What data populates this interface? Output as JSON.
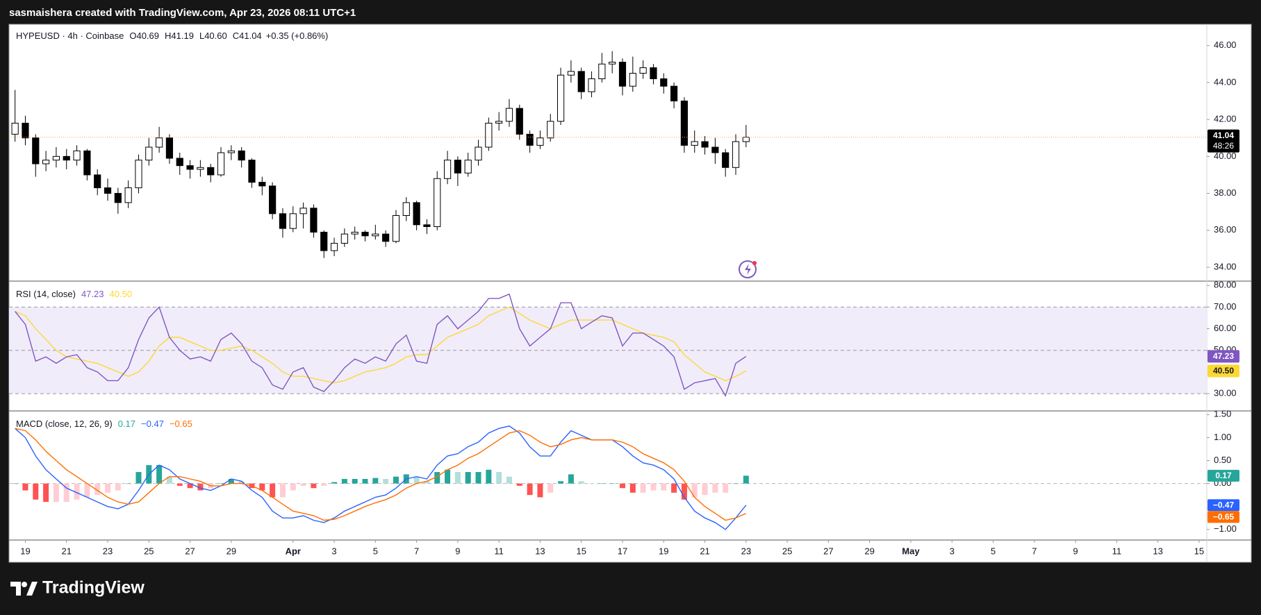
{
  "header": {
    "credit": "sasmaishera created with TradingView.com, Apr 23, 2026 08:11 UTC+1"
  },
  "footer": {
    "brand": "TradingView"
  },
  "chart_data": [
    {
      "type": "candlestick",
      "legend": {
        "symbol": "HYPEUSD · 4h · Coinbase",
        "ohlc": [
          {
            "key": "O",
            "value": "40.69"
          },
          {
            "key": "H",
            "value": "41.19"
          },
          {
            "key": "L",
            "value": "40.60"
          },
          {
            "key": "C",
            "value": "41.04"
          }
        ],
        "change": "+0.35 (+0.86%)"
      },
      "x": [
        "Mar 18 12:00",
        "Mar 19 00:00",
        "Mar 19 12:00",
        "Mar 20 00:00",
        "Mar 20 12:00",
        "Mar 21 00:00",
        "Mar 21 12:00",
        "Mar 22 00:00",
        "Mar 22 12:00",
        "Mar 23 00:00",
        "Mar 23 12:00",
        "Mar 24 00:00",
        "Mar 24 12:00",
        "Mar 25 00:00",
        "Mar 25 12:00",
        "Mar 26 00:00",
        "Mar 26 12:00",
        "Mar 27 00:00",
        "Mar 27 12:00",
        "Mar 28 00:00",
        "Mar 28 12:00",
        "Mar 29 00:00",
        "Mar 29 12:00",
        "Mar 30 00:00",
        "Mar 30 12:00",
        "Mar 31 00:00",
        "Mar 31 12:00",
        "Apr 1 00:00",
        "Apr 1 12:00",
        "Apr 2 00:00",
        "Apr 2 12:00",
        "Apr 3 00:00",
        "Apr 3 12:00",
        "Apr 4 00:00",
        "Apr 4 12:00",
        "Apr 5 00:00",
        "Apr 5 12:00",
        "Apr 6 00:00",
        "Apr 6 12:00",
        "Apr 7 00:00",
        "Apr 7 12:00",
        "Apr 8 00:00",
        "Apr 8 12:00",
        "Apr 9 00:00",
        "Apr 9 12:00",
        "Apr 10 00:00",
        "Apr 10 12:00",
        "Apr 11 00:00",
        "Apr 11 12:00",
        "Apr 12 00:00",
        "Apr 12 12:00",
        "Apr 13 00:00",
        "Apr 13 12:00",
        "Apr 14 00:00",
        "Apr 14 12:00",
        "Apr 15 00:00",
        "Apr 15 12:00",
        "Apr 16 00:00",
        "Apr 16 12:00",
        "Apr 17 00:00",
        "Apr 17 12:00",
        "Apr 18 00:00",
        "Apr 18 12:00",
        "Apr 19 00:00",
        "Apr 19 12:00",
        "Apr 20 00:00",
        "Apr 20 12:00",
        "Apr 21 00:00",
        "Apr 21 12:00",
        "Apr 22 00:00",
        "Apr 22 12:00",
        "Apr 23 00:00"
      ],
      "open": [
        41.2,
        41.8,
        41.0,
        39.6,
        39.8,
        40.0,
        39.8,
        40.3,
        39.0,
        38.3,
        38.0,
        37.5,
        38.3,
        39.8,
        40.5,
        41.0,
        39.9,
        39.5,
        39.3,
        39.4,
        39.0,
        40.2,
        40.3,
        39.8,
        38.6,
        38.4,
        36.9,
        36.1,
        36.9,
        37.2,
        35.9,
        34.9,
        35.3,
        35.8,
        35.9,
        35.7,
        35.8,
        35.4,
        36.8,
        37.5,
        36.3,
        36.2,
        38.8,
        39.8,
        39.1,
        39.8,
        40.5,
        41.8,
        41.9,
        42.6,
        41.2,
        40.6,
        41.0,
        41.9,
        44.4,
        44.6,
        43.5,
        44.2,
        45.0,
        45.1,
        43.8,
        44.5,
        44.8,
        44.2,
        43.8,
        43.0,
        40.6,
        40.8,
        40.5,
        40.2,
        39.4,
        40.8
      ],
      "high": [
        43.6,
        42.2,
        41.2,
        40.3,
        40.5,
        40.4,
        40.6,
        40.4,
        39.3,
        38.8,
        38.3,
        38.7,
        40.1,
        41.0,
        41.6,
        41.2,
        40.2,
        39.8,
        39.8,
        39.6,
        40.5,
        40.6,
        40.5,
        39.9,
        38.9,
        38.6,
        37.2,
        37.3,
        37.5,
        37.4,
        36.0,
        35.6,
        36.1,
        36.2,
        36.0,
        36.3,
        36.0,
        37.1,
        37.8,
        37.6,
        36.6,
        39.2,
        40.3,
        40.0,
        40.2,
        40.9,
        42.1,
        42.4,
        43.1,
        42.8,
        41.4,
        41.4,
        42.3,
        44.8,
        45.2,
        44.8,
        44.6,
        45.6,
        45.7,
        45.3,
        45.4,
        45.2,
        45.0,
        44.5,
        44.0,
        43.2,
        41.4,
        41.1,
        41.0,
        40.4,
        41.2,
        41.7
      ],
      "low": [
        40.8,
        40.6,
        38.9,
        39.2,
        39.4,
        39.3,
        39.5,
        38.7,
        37.9,
        37.6,
        36.9,
        37.2,
        38.0,
        39.5,
        40.2,
        39.6,
        39.0,
        38.8,
        38.9,
        38.6,
        38.9,
        39.8,
        39.4,
        38.3,
        37.9,
        36.6,
        35.6,
        35.9,
        36.1,
        35.6,
        34.5,
        34.6,
        35.1,
        35.5,
        35.4,
        35.5,
        35.1,
        35.3,
        36.5,
        36.0,
        35.8,
        36.0,
        38.5,
        38.4,
        38.9,
        39.5,
        40.3,
        41.4,
        41.6,
        40.9,
        40.2,
        40.4,
        40.8,
        41.7,
        44.0,
        43.1,
        43.2,
        44.0,
        44.5,
        43.3,
        43.5,
        44.2,
        43.9,
        43.4,
        42.6,
        40.2,
        40.2,
        40.1,
        39.6,
        38.9,
        39.0,
        40.5
      ],
      "close": [
        41.8,
        41.0,
        39.6,
        39.8,
        40.0,
        39.8,
        40.3,
        39.0,
        38.3,
        38.0,
        37.5,
        38.3,
        39.8,
        40.5,
        41.0,
        39.9,
        39.5,
        39.3,
        39.4,
        39.0,
        40.2,
        40.3,
        39.8,
        38.6,
        38.4,
        36.9,
        36.1,
        36.9,
        37.2,
        35.9,
        34.9,
        35.3,
        35.8,
        35.9,
        35.7,
        35.8,
        35.4,
        36.8,
        37.5,
        36.3,
        36.2,
        38.8,
        39.8,
        39.1,
        39.8,
        40.5,
        41.8,
        41.9,
        42.6,
        41.2,
        40.6,
        41.0,
        41.9,
        44.4,
        44.6,
        43.5,
        44.2,
        45.0,
        45.1,
        43.8,
        44.5,
        44.8,
        44.2,
        43.8,
        43.0,
        40.6,
        40.8,
        40.5,
        40.2,
        39.4,
        40.8,
        41.04
      ],
      "up_color": "#ffffff",
      "down_color": "#000000",
      "border_color": "#000000",
      "last_price": 41.04,
      "last_price_label": "41.04",
      "countdown": "48:26",
      "last_price_color": "#f5b041",
      "ylim": [
        33.25,
        47.15
      ],
      "yticks": [
        {
          "value": 34,
          "label": "34.00"
        },
        {
          "value": 36,
          "label": "36.00"
        },
        {
          "value": 38,
          "label": "38.00"
        },
        {
          "value": 40,
          "label": "40.00"
        },
        {
          "value": 42,
          "label": "42.00"
        },
        {
          "value": 44,
          "label": "44.00"
        },
        {
          "value": 46,
          "label": "46.00"
        }
      ],
      "xlim": [
        "Mar 18 05:00",
        "May 15 09:00"
      ],
      "xticks": [
        {
          "value": "Mar 19",
          "label": "19"
        },
        {
          "value": "Mar 21",
          "label": "21"
        },
        {
          "value": "Mar 23",
          "label": "23"
        },
        {
          "value": "Mar 25",
          "label": "25"
        },
        {
          "value": "Mar 27",
          "label": "27"
        },
        {
          "value": "Mar 29",
          "label": "29"
        },
        {
          "value": "Apr 1",
          "label": "Apr"
        },
        {
          "value": "Apr 3",
          "label": "3"
        },
        {
          "value": "Apr 5",
          "label": "5"
        },
        {
          "value": "Apr 7",
          "label": "7"
        },
        {
          "value": "Apr 9",
          "label": "9"
        },
        {
          "value": "Apr 11",
          "label": "11"
        },
        {
          "value": "Apr 13",
          "label": "13"
        },
        {
          "value": "Apr 15",
          "label": "15"
        },
        {
          "value": "Apr 17",
          "label": "17"
        },
        {
          "value": "Apr 19",
          "label": "19"
        },
        {
          "value": "Apr 21",
          "label": "21"
        },
        {
          "value": "Apr 23",
          "label": "23"
        },
        {
          "value": "Apr 25",
          "label": "25"
        },
        {
          "value": "Apr 27",
          "label": "27"
        },
        {
          "value": "Apr 29",
          "label": "29"
        },
        {
          "value": "May 1",
          "label": "May"
        },
        {
          "value": "May 3",
          "label": "3"
        },
        {
          "value": "May 5",
          "label": "5"
        },
        {
          "value": "May 7",
          "label": "7"
        },
        {
          "value": "May 9",
          "label": "9"
        },
        {
          "value": "May 11",
          "label": "11"
        },
        {
          "value": "May 13",
          "label": "13"
        },
        {
          "value": "May 15",
          "label": "15"
        }
      ],
      "grid": false
    },
    {
      "type": "line",
      "title": "RSI (14, close)",
      "series": [
        {
          "color": "#7e57c2",
          "last_label": "47.23",
          "values": [
            68,
            62,
            45,
            47,
            44,
            47,
            48,
            42,
            40,
            36,
            36,
            42,
            55,
            65,
            70,
            56,
            50,
            46,
            47,
            45,
            55,
            58,
            53,
            45,
            42,
            34,
            32,
            40,
            42,
            33,
            31,
            36,
            42,
            46,
            44,
            47,
            45,
            53,
            57,
            45,
            44,
            62,
            66,
            60,
            64,
            68,
            74,
            74,
            76,
            60,
            52,
            56,
            60,
            72,
            72,
            60,
            63,
            66,
            65,
            52,
            58,
            58,
            55,
            52,
            47,
            32,
            35,
            36,
            37,
            29,
            44,
            47.23
          ]
        },
        {
          "color": "#fdd835",
          "last_label": "40.50",
          "values": [
            68,
            66,
            60,
            55,
            50,
            47,
            46,
            45,
            44,
            42,
            40,
            38,
            40,
            45,
            52,
            56,
            56,
            54,
            52,
            50,
            50,
            51,
            52,
            50,
            47,
            44,
            40,
            38,
            38,
            37,
            36,
            35,
            36,
            38,
            40,
            41,
            42,
            44,
            47,
            48,
            48,
            52,
            56,
            58,
            60,
            62,
            66,
            68,
            70,
            67,
            64,
            62,
            60,
            62,
            64,
            64,
            64,
            64,
            64,
            62,
            60,
            58,
            57,
            56,
            54,
            48,
            44,
            40,
            38,
            36,
            38,
            40.5
          ]
        }
      ],
      "levels": [
        70,
        50,
        30
      ],
      "band": [
        30,
        70
      ],
      "band_color": "#f1ecfa",
      "ylim": [
        22,
        82
      ],
      "yticks": [
        {
          "value": 30,
          "label": "30.00"
        },
        {
          "value": 50,
          "label": "50.00"
        },
        {
          "value": 60,
          "label": "60.00"
        },
        {
          "value": 70,
          "label": "70.00"
        },
        {
          "value": 80,
          "label": "80.00"
        }
      ],
      "grid": false
    },
    {
      "type": "macd",
      "title": "MACD (close, 12, 26, 9)",
      "histogram": {
        "last_label": "0.17",
        "colors": {
          "up_rising": "#26a69a",
          "up_falling": "#b2dfdb",
          "down_falling": "#ff5252",
          "down_rising": "#ffcdd2"
        },
        "values": [
          0,
          -0.15,
          -0.35,
          -0.4,
          -0.4,
          -0.4,
          -0.35,
          -0.3,
          -0.25,
          -0.2,
          -0.15,
          0,
          0.25,
          0.4,
          0.4,
          0.15,
          -0.05,
          -0.1,
          -0.15,
          -0.1,
          0,
          0.1,
          0.05,
          -0.1,
          -0.15,
          -0.3,
          -0.3,
          -0.15,
          -0.05,
          -0.1,
          -0.05,
          0.03,
          0.1,
          0.1,
          0.1,
          0.12,
          0.1,
          0.15,
          0.2,
          0.15,
          0.05,
          0.25,
          0.3,
          0.25,
          0.25,
          0.25,
          0.3,
          0.25,
          0.15,
          -0.05,
          -0.25,
          -0.3,
          -0.2,
          0.05,
          0.2,
          0.05,
          0,
          0,
          0,
          -0.1,
          -0.2,
          -0.2,
          -0.15,
          -0.15,
          -0.2,
          -0.35,
          -0.3,
          -0.25,
          -0.2,
          -0.2,
          0,
          0.17
        ]
      },
      "series": [
        {
          "color": "#2962ff",
          "last_label": "−0.47",
          "values": [
            1.2,
            1.0,
            0.6,
            0.3,
            0.1,
            -0.1,
            -0.2,
            -0.3,
            -0.4,
            -0.5,
            -0.55,
            -0.45,
            -0.15,
            0.2,
            0.4,
            0.3,
            0.1,
            0,
            -0.1,
            -0.15,
            -0.05,
            0.1,
            0.05,
            -0.15,
            -0.3,
            -0.6,
            -0.75,
            -0.75,
            -0.7,
            -0.8,
            -0.85,
            -0.75,
            -0.6,
            -0.5,
            -0.4,
            -0.3,
            -0.25,
            -0.1,
            0.1,
            0.15,
            0.1,
            0.4,
            0.6,
            0.65,
            0.8,
            0.9,
            1.1,
            1.2,
            1.25,
            1.1,
            0.8,
            0.6,
            0.6,
            0.9,
            1.15,
            1.05,
            0.95,
            0.95,
            0.95,
            0.8,
            0.6,
            0.45,
            0.4,
            0.3,
            0.1,
            -0.3,
            -0.6,
            -0.75,
            -0.85,
            -1.0,
            -0.75,
            -0.47
          ]
        },
        {
          "color": "#ff6d00",
          "last_label": "−0.65",
          "values": [
            1.2,
            1.15,
            0.95,
            0.7,
            0.5,
            0.3,
            0.15,
            0,
            -0.15,
            -0.3,
            -0.4,
            -0.45,
            -0.4,
            -0.2,
            0,
            0.15,
            0.15,
            0.1,
            0.05,
            -0.05,
            -0.05,
            0,
            0,
            -0.05,
            -0.15,
            -0.3,
            -0.45,
            -0.6,
            -0.65,
            -0.7,
            -0.8,
            -0.78,
            -0.7,
            -0.6,
            -0.5,
            -0.42,
            -0.35,
            -0.25,
            -0.1,
            0,
            0.05,
            0.15,
            0.3,
            0.4,
            0.55,
            0.65,
            0.8,
            0.95,
            1.1,
            1.15,
            1.05,
            0.9,
            0.8,
            0.85,
            0.95,
            1.0,
            0.95,
            0.95,
            0.95,
            0.9,
            0.8,
            0.65,
            0.55,
            0.45,
            0.3,
            0.05,
            -0.3,
            -0.5,
            -0.65,
            -0.8,
            -0.75,
            -0.65
          ]
        }
      ],
      "levels": [
        0
      ],
      "ylim": [
        -1.23,
        1.58
      ],
      "yticks": [
        {
          "value": -1,
          "label": "−1.00"
        },
        {
          "value": 0,
          "label": "0.00"
        },
        {
          "value": 0.5,
          "label": "0.50"
        },
        {
          "value": 1,
          "label": "1.00"
        },
        {
          "value": 1.5,
          "label": "1.50"
        }
      ],
      "grid": false
    }
  ]
}
